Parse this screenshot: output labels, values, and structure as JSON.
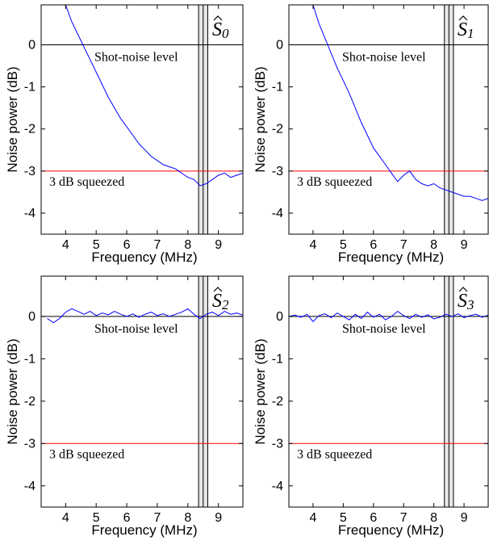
{
  "chart_data": [
    {
      "type": "line",
      "title": "Ŝ0",
      "title_base": "S",
      "title_sub": "0",
      "xlabel": "Frequency (MHz)",
      "ylabel": "Noise power (dB)",
      "xlim": [
        3.2,
        9.8
      ],
      "ylim": [
        -4.5,
        0.95
      ],
      "xticks": [
        "4",
        "5",
        "6",
        "7",
        "8",
        "9"
      ],
      "yticks": [
        "0",
        "-1",
        "-2",
        "-3",
        "-4"
      ],
      "reference_lines": [
        {
          "y": 0,
          "label": "Shot-noise level",
          "color": "#000000"
        },
        {
          "y": -3,
          "label": "3 dB squeezed",
          "color": "#ff0000"
        }
      ],
      "shaded_band": {
        "x": [
          8.35,
          8.65
        ]
      },
      "series": [
        {
          "color": "#0000ff",
          "x": [
            4.0,
            4.2,
            4.4,
            4.6,
            4.8,
            5.0,
            5.2,
            5.4,
            5.6,
            5.8,
            6.0,
            6.2,
            6.4,
            6.6,
            6.8,
            7.0,
            7.2,
            7.4,
            7.6,
            7.8,
            8.0,
            8.2,
            8.4,
            8.6,
            8.8,
            9.0,
            9.2,
            9.4,
            9.6,
            9.8
          ],
          "y": [
            0.95,
            0.55,
            0.25,
            -0.05,
            -0.35,
            -0.65,
            -0.95,
            -1.25,
            -1.5,
            -1.75,
            -1.95,
            -2.15,
            -2.35,
            -2.5,
            -2.65,
            -2.75,
            -2.85,
            -2.9,
            -2.95,
            -3.05,
            -3.15,
            -3.2,
            -3.35,
            -3.3,
            -3.2,
            -3.1,
            -3.05,
            -3.15,
            -3.1,
            -3.05
          ]
        }
      ]
    },
    {
      "type": "line",
      "title": "Ŝ1",
      "title_base": "S",
      "title_sub": "1",
      "xlabel": "Frequency (MHz)",
      "ylabel": "Noise power (dB)",
      "xlim": [
        3.2,
        9.8
      ],
      "ylim": [
        -4.5,
        0.95
      ],
      "xticks": [
        "4",
        "5",
        "6",
        "7",
        "8",
        "9"
      ],
      "yticks": [
        "0",
        "-1",
        "-2",
        "-3",
        "-4"
      ],
      "reference_lines": [
        {
          "y": 0,
          "label": "Shot-noise level",
          "color": "#000000"
        },
        {
          "y": -3,
          "label": "3 dB squeezed",
          "color": "#ff0000"
        }
      ],
      "shaded_band": {
        "x": [
          8.35,
          8.65
        ]
      },
      "series": [
        {
          "color": "#0000ff",
          "x": [
            4.0,
            4.2,
            4.4,
            4.6,
            4.8,
            5.0,
            5.2,
            5.4,
            5.6,
            5.8,
            6.0,
            6.2,
            6.4,
            6.6,
            6.8,
            7.0,
            7.2,
            7.4,
            7.6,
            7.8,
            8.0,
            8.2,
            8.4,
            8.6,
            8.8,
            9.0,
            9.2,
            9.4,
            9.6,
            9.8
          ],
          "y": [
            0.95,
            0.5,
            0.15,
            -0.2,
            -0.55,
            -0.85,
            -1.15,
            -1.5,
            -1.85,
            -2.15,
            -2.45,
            -2.65,
            -2.85,
            -3.05,
            -3.25,
            -3.1,
            -3.0,
            -3.2,
            -3.3,
            -3.35,
            -3.3,
            -3.4,
            -3.45,
            -3.5,
            -3.55,
            -3.6,
            -3.6,
            -3.65,
            -3.7,
            -3.65
          ]
        }
      ]
    },
    {
      "type": "line",
      "title": "Ŝ2",
      "title_base": "S",
      "title_sub": "2",
      "xlabel": "Frequency (MHz)",
      "ylabel": "Noise power (dB)",
      "xlim": [
        3.2,
        9.8
      ],
      "ylim": [
        -4.5,
        0.95
      ],
      "xticks": [
        "4",
        "5",
        "6",
        "7",
        "8",
        "9"
      ],
      "yticks": [
        "0",
        "-1",
        "-2",
        "-3",
        "-4"
      ],
      "reference_lines": [
        {
          "y": 0,
          "label": "Shot-noise level",
          "color": "#000000"
        },
        {
          "y": -3,
          "label": "3 dB squeezed",
          "color": "#ff0000"
        }
      ],
      "shaded_band": {
        "x": [
          8.35,
          8.65
        ]
      },
      "series": [
        {
          "color": "#0000ff",
          "x": [
            3.4,
            3.6,
            3.8,
            4.0,
            4.2,
            4.4,
            4.6,
            4.8,
            5.0,
            5.2,
            5.4,
            5.6,
            5.8,
            6.0,
            6.2,
            6.4,
            6.6,
            6.8,
            7.0,
            7.2,
            7.4,
            7.6,
            7.8,
            8.0,
            8.2,
            8.4,
            8.6,
            8.8,
            9.0,
            9.2,
            9.4,
            9.6,
            9.8
          ],
          "y": [
            -0.05,
            -0.15,
            -0.05,
            0.1,
            0.18,
            0.12,
            0.05,
            0.12,
            0.02,
            0.08,
            0.04,
            0.12,
            0.05,
            0.0,
            0.06,
            -0.02,
            0.05,
            0.1,
            0.02,
            0.06,
            0.0,
            0.05,
            0.1,
            0.18,
            0.05,
            -0.05,
            0.05,
            0.1,
            0.02,
            0.12,
            0.05,
            0.08,
            0.03
          ]
        }
      ]
    },
    {
      "type": "line",
      "title": "Ŝ3",
      "title_base": "S",
      "title_sub": "3",
      "xlabel": "Frequency (MHz)",
      "ylabel": "Noise power (dB)",
      "xlim": [
        3.2,
        9.8
      ],
      "ylim": [
        -4.5,
        0.95
      ],
      "xticks": [
        "4",
        "5",
        "6",
        "7",
        "8",
        "9"
      ],
      "yticks": [
        "0",
        "-1",
        "-2",
        "-3",
        "-4"
      ],
      "reference_lines": [
        {
          "y": 0,
          "label": "Shot-noise level",
          "color": "#000000"
        },
        {
          "y": -3,
          "label": "3 dB squeezed",
          "color": "#ff0000"
        }
      ],
      "shaded_band": {
        "x": [
          8.35,
          8.65
        ]
      },
      "series": [
        {
          "color": "#0000ff",
          "x": [
            3.2,
            3.4,
            3.6,
            3.8,
            4.0,
            4.2,
            4.4,
            4.6,
            4.8,
            5.0,
            5.2,
            5.4,
            5.6,
            5.8,
            6.0,
            6.2,
            6.4,
            6.6,
            6.8,
            7.0,
            7.2,
            7.4,
            7.6,
            7.8,
            8.0,
            8.2,
            8.4,
            8.6,
            8.8,
            9.0,
            9.2,
            9.4,
            9.6,
            9.8
          ],
          "y": [
            0.0,
            0.03,
            -0.02,
            0.05,
            -0.12,
            0.02,
            0.06,
            -0.03,
            0.08,
            0.0,
            -0.08,
            0.05,
            -0.05,
            0.1,
            -0.02,
            0.05,
            -0.08,
            0.0,
            0.12,
            0.02,
            -0.05,
            0.05,
            -0.02,
            0.04,
            -0.06,
            -0.02,
            0.05,
            0.0,
            0.06,
            -0.03,
            0.02,
            0.05,
            -0.02,
            0.03
          ]
        }
      ]
    }
  ]
}
